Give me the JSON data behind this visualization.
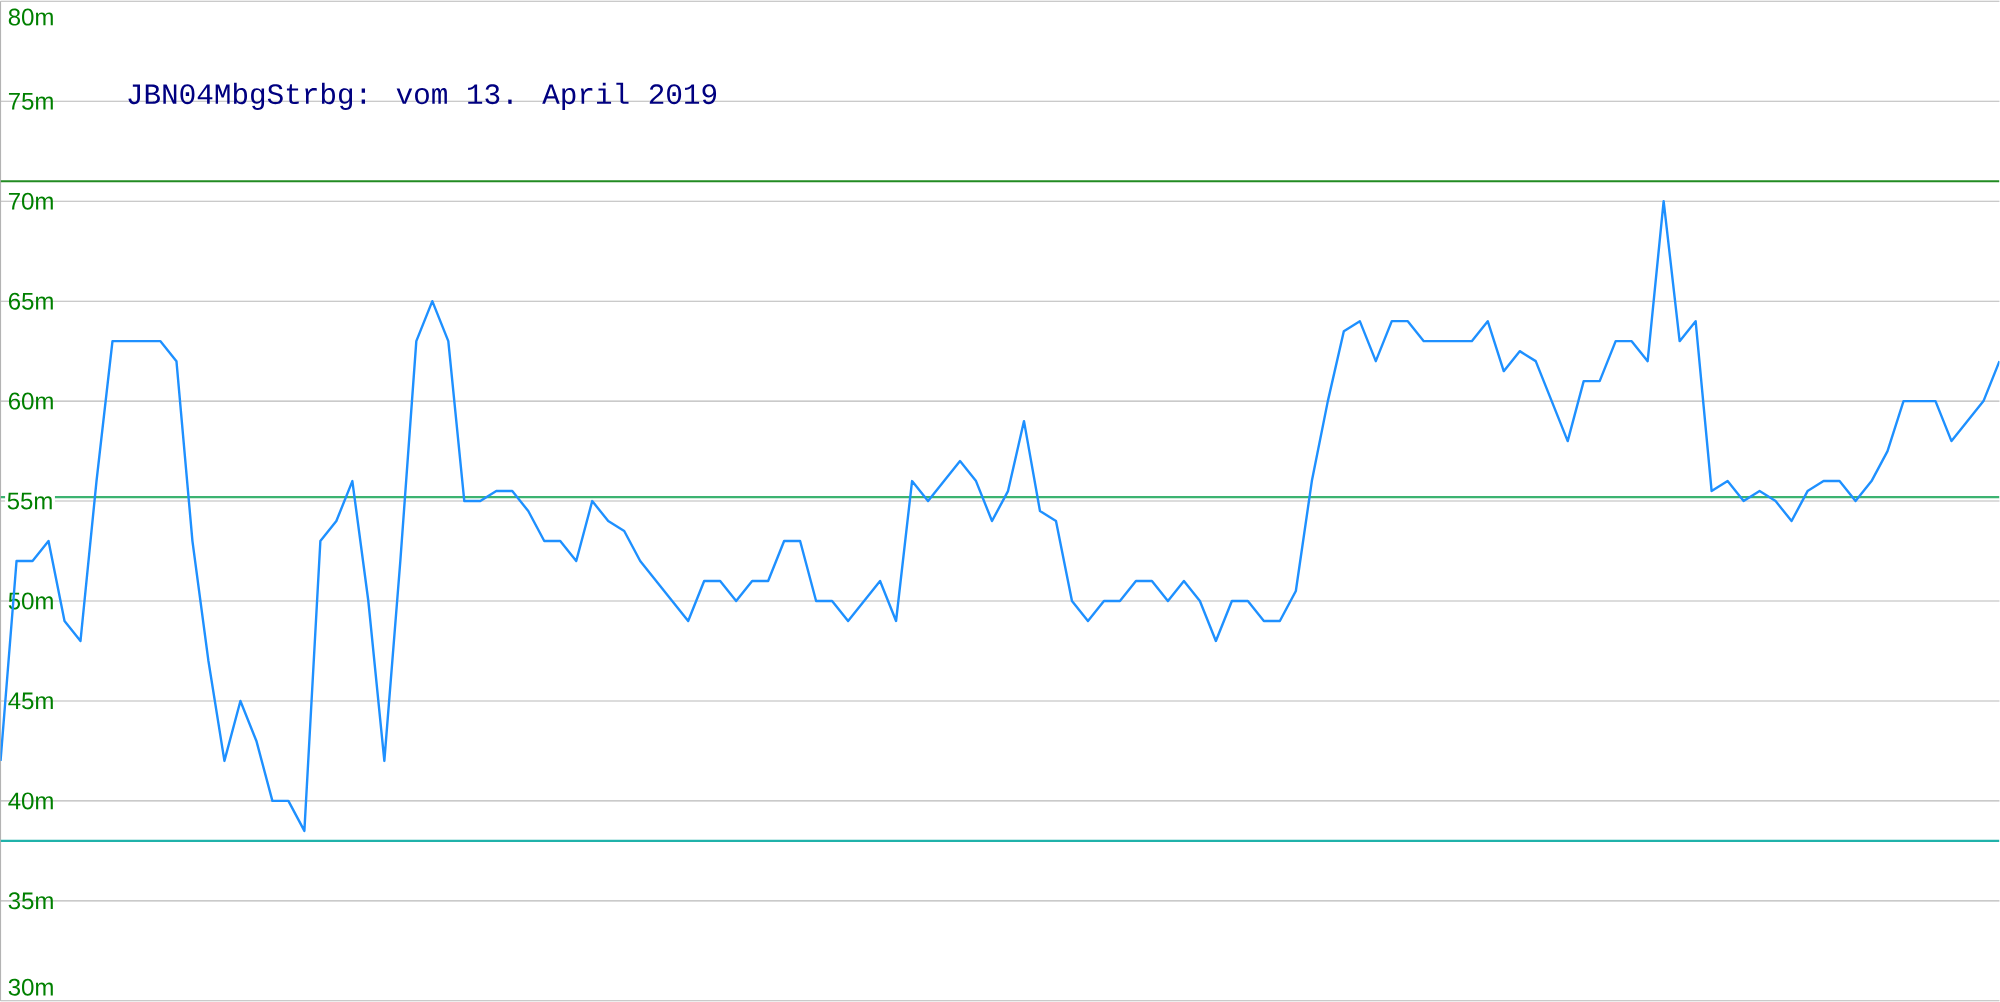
{
  "chart_data": {
    "type": "line",
    "title": "JBN04MbgStrbg: vom 13. April 2019",
    "categories": [
      null,
      null,
      null,
      null,
      null,
      null,
      null,
      null,
      null,
      null,
      null,
      null,
      null,
      null,
      null,
      null,
      null,
      null,
      null,
      null,
      null,
      null,
      null,
      null,
      null,
      null,
      null,
      null,
      null,
      null,
      null,
      null,
      null,
      null,
      null,
      null,
      null,
      null,
      null,
      null,
      null,
      null,
      null,
      null,
      null,
      null,
      null,
      null,
      null,
      null,
      null,
      null,
      null,
      null,
      null,
      null,
      null,
      null,
      null,
      null,
      null,
      null,
      null,
      null,
      null,
      null,
      null,
      null,
      null,
      null,
      null,
      null,
      null,
      null,
      null,
      null,
      null,
      null,
      null,
      null,
      null,
      null,
      null,
      null,
      null,
      null,
      null,
      null,
      null,
      null,
      null,
      null,
      null,
      null,
      null,
      null,
      null,
      null,
      null,
      null,
      null,
      null,
      null,
      null,
      null,
      null,
      null,
      null,
      null,
      null,
      null,
      null,
      null,
      null,
      null,
      null,
      null,
      null,
      null,
      null,
      null,
      null,
      null,
      null,
      null,
      null
    ],
    "series": [
      {
        "color": "#1e90ff",
        "values": [
          42,
          52,
          52,
          53,
          49,
          48,
          56,
          63,
          63,
          63,
          63,
          62,
          53,
          47,
          42,
          45,
          43,
          40,
          40,
          38.5,
          53,
          54,
          56,
          50,
          42,
          52,
          63,
          65,
          63,
          55,
          55,
          55.5,
          55.5,
          54.5,
          53,
          53,
          52,
          55,
          54,
          53.5,
          52,
          51,
          50,
          49,
          51,
          51,
          50,
          51,
          51,
          53,
          53,
          50,
          50,
          49,
          50,
          51,
          49,
          56,
          55,
          56,
          57,
          56,
          54,
          55.5,
          59,
          54.5,
          54,
          50,
          49,
          50,
          50,
          51,
          51,
          50,
          51,
          50,
          48,
          50,
          50,
          49,
          49,
          50.5,
          56,
          60,
          63.5,
          64,
          62,
          64,
          64,
          63,
          63,
          63,
          63,
          64,
          61.5,
          62.5,
          62,
          60,
          58,
          61,
          61,
          63,
          63,
          62,
          70,
          63,
          64,
          55.5,
          56,
          55,
          55.5,
          55,
          54,
          55.5,
          56,
          56,
          55,
          56,
          57.5,
          60,
          60,
          60,
          58,
          59,
          60,
          62
        ]
      }
    ],
    "ylim": [
      30,
      80
    ],
    "yticks": [
      {
        "value": 30,
        "label": "30m"
      },
      {
        "value": 35,
        "label": "35m"
      },
      {
        "value": 40,
        "label": "40m"
      },
      {
        "value": 45,
        "label": "45m"
      },
      {
        "value": 50,
        "label": "50m"
      },
      {
        "value": 55,
        "label": "55m"
      },
      {
        "value": 60,
        "label": "60m"
      },
      {
        "value": 65,
        "label": "65m"
      },
      {
        "value": 70,
        "label": "70m"
      },
      {
        "value": 75,
        "label": "75m"
      },
      {
        "value": 80,
        "label": "80m"
      }
    ],
    "grid": true,
    "marker": "none",
    "line_style": "solid",
    "ref_lines": [
      {
        "axis": "y",
        "value": 71,
        "color": "#228b22"
      },
      {
        "axis": "y",
        "value": 55.2,
        "color": "#3cb371"
      },
      {
        "axis": "y",
        "value": 38,
        "color": "#20b2aa"
      }
    ]
  }
}
